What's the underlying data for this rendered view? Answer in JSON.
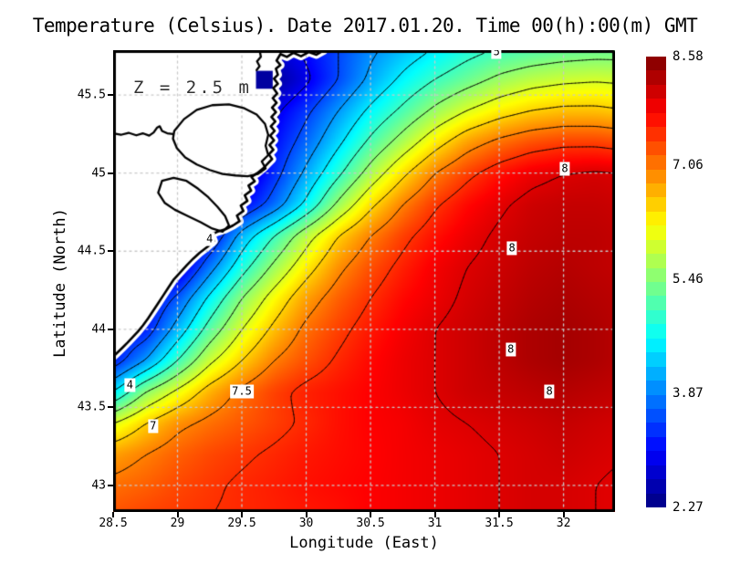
{
  "title": "Temperature (Celsius). Date 2017.01.20. Time 00(h):00(m) GMT",
  "annotation": "Z = 2.5 m",
  "axes": {
    "xlabel": "Longitude (East)",
    "ylabel": "Latitude (North)",
    "x_ticks": [
      {
        "label": "28.5",
        "lon": 28.5
      },
      {
        "label": "29",
        "lon": 29
      },
      {
        "label": "29.5",
        "lon": 29.5
      },
      {
        "label": "30",
        "lon": 30
      },
      {
        "label": "30.5",
        "lon": 30.5
      },
      {
        "label": "31",
        "lon": 31
      },
      {
        "label": "31.5",
        "lon": 31.5
      },
      {
        "label": "32",
        "lon": 32
      }
    ],
    "y_ticks": [
      {
        "label": "45.5",
        "lat": 45.5
      },
      {
        "label": "45",
        "lat": 45
      },
      {
        "label": "44.5",
        "lat": 44.5
      },
      {
        "label": "44",
        "lat": 44
      },
      {
        "label": "43.5",
        "lat": 43.5
      },
      {
        "label": "43",
        "lat": 43
      }
    ]
  },
  "colorbar": {
    "min": 2.27,
    "max": 8.58,
    "steps": 32,
    "labels": [
      {
        "text": "8.58",
        "value": 8.58
      },
      {
        "text": "7.06",
        "value": 7.06
      },
      {
        "text": "5.46",
        "value": 5.46
      },
      {
        "text": "3.87",
        "value": 3.87
      },
      {
        "text": "2.27",
        "value": 2.27
      }
    ]
  },
  "colors": {
    "land": "#ffffff",
    "coast": "#000000",
    "grid": "#c9c9c9",
    "frame": "#000000",
    "contour": "#000000",
    "cold_cell": "#0000a0"
  },
  "chart_data": {
    "type": "heatmap",
    "title": "Temperature (Celsius). Date 2017.01.20. Time 00(h):00(m) GMT",
    "xlabel": "Longitude (East)",
    "ylabel": "Latitude (North)",
    "units": "Celsius",
    "depth_annotation": "Z = 2.5 m",
    "extent": {
      "lon_min": 28.5,
      "lon_max": 32.4,
      "lat_min": 42.83,
      "lat_max": 45.787
    },
    "scale": {
      "min": 2.27,
      "max": 8.58,
      "colormap": "jet"
    },
    "contour_levels": [
      2.5,
      3,
      3.5,
      4,
      4.5,
      5,
      5.5,
      6,
      6.5,
      7,
      7.5,
      8,
      8.5
    ],
    "grid": {
      "lons": [
        28.5,
        28.75,
        29,
        29.25,
        29.5,
        29.75,
        30,
        30.25,
        30.5,
        30.75,
        31,
        31.25,
        31.5,
        31.75,
        32,
        32.25,
        32.5
      ],
      "lats": [
        45.8,
        45.6,
        45.4,
        45.2,
        45,
        44.8,
        44.6,
        44.4,
        44.2,
        44,
        43.8,
        43.6,
        43.4,
        43.2,
        43,
        42.8
      ],
      "values": [
        [
          2.3,
          2.3,
          2.3,
          2.3,
          2.4,
          2.8,
          3.1,
          3.5,
          3.9,
          4.2,
          4.5,
          4.8,
          5.0,
          5.1,
          5.2,
          5.25,
          5.25
        ],
        [
          2.3,
          2.3,
          2.3,
          2.3,
          2.3,
          2.4,
          2.9,
          3.5,
          4.1,
          4.6,
          5.0,
          5.3,
          5.6,
          5.8,
          5.9,
          5.95,
          5.9
        ],
        [
          2.3,
          2.3,
          2.3,
          2.3,
          2.4,
          2.9,
          3.4,
          4.0,
          4.6,
          5.1,
          5.6,
          6.0,
          6.3,
          6.5,
          6.6,
          6.6,
          6.5
        ],
        [
          2.3,
          2.3,
          2.3,
          2.3,
          2.5,
          3.1,
          3.7,
          4.4,
          5.1,
          5.7,
          6.3,
          6.8,
          7.1,
          7.3,
          7.4,
          7.4,
          7.3
        ],
        [
          2.3,
          2.3,
          2.3,
          2.3,
          2.6,
          3.3,
          4.1,
          4.9,
          5.7,
          6.4,
          7.0,
          7.4,
          7.7,
          7.9,
          8.0,
          8.05,
          8.0
        ],
        [
          2.3,
          2.3,
          2.3,
          2.4,
          3.0,
          3.7,
          4.6,
          5.6,
          6.4,
          7.0,
          7.45,
          7.75,
          7.95,
          8.1,
          8.15,
          8.15,
          8.1
        ],
        [
          2.4,
          2.4,
          2.5,
          3.0,
          4.2,
          5.0,
          5.8,
          6.5,
          7.0,
          7.4,
          7.7,
          7.9,
          8.05,
          8.15,
          8.2,
          8.2,
          8.15
        ],
        [
          2.6,
          2.6,
          2.7,
          3.8,
          4.8,
          5.6,
          6.3,
          6.9,
          7.3,
          7.6,
          7.85,
          8.0,
          8.1,
          8.2,
          8.25,
          8.2,
          8.15
        ],
        [
          2.8,
          2.9,
          3.6,
          4.6,
          5.5,
          6.2,
          6.8,
          7.2,
          7.5,
          7.75,
          7.9,
          8.05,
          8.15,
          8.25,
          8.3,
          8.25,
          8.2
        ],
        [
          3.0,
          3.2,
          4.2,
          5.2,
          6.0,
          6.6,
          7.1,
          7.4,
          7.65,
          7.85,
          8.0,
          8.1,
          8.2,
          8.3,
          8.35,
          8.3,
          8.2
        ],
        [
          3.2,
          4.0,
          5.0,
          5.9,
          6.5,
          7.0,
          7.3,
          7.55,
          7.75,
          7.9,
          8.0,
          8.1,
          8.2,
          8.3,
          8.35,
          8.3,
          8.2
        ],
        [
          4.5,
          5.5,
          6.1,
          6.7,
          7.1,
          7.4,
          7.6,
          7.7,
          7.8,
          7.9,
          8.0,
          8.1,
          8.15,
          8.2,
          8.25,
          8.2,
          8.15
        ],
        [
          6.0,
          6.5,
          6.9,
          7.1,
          7.25,
          7.4,
          7.55,
          7.7,
          7.8,
          7.85,
          7.95,
          8.0,
          8.05,
          8.1,
          8.15,
          8.1,
          8.05
        ],
        [
          6.8,
          7.0,
          7.2,
          7.35,
          7.45,
          7.55,
          7.65,
          7.72,
          7.78,
          7.85,
          7.9,
          7.95,
          8.0,
          8.05,
          8.1,
          8.05,
          8.0
        ],
        [
          7.1,
          7.2,
          7.35,
          7.45,
          7.55,
          7.62,
          7.7,
          7.75,
          7.8,
          7.85,
          7.9,
          7.95,
          8.0,
          8.05,
          8.05,
          8.0,
          7.95
        ],
        [
          7.3,
          7.4,
          7.45,
          7.5,
          7.55,
          7.6,
          7.65,
          7.7,
          7.8,
          7.85,
          7.9,
          7.95,
          8.0,
          8.05,
          8.05,
          8.0,
          7.95
        ]
      ]
    },
    "contour_labels": [
      {
        "text": "5",
        "lon": 31.48,
        "lat": 45.775
      },
      {
        "text": "4",
        "lon": 29.25,
        "lat": 44.58
      },
      {
        "text": "4",
        "lon": 28.63,
        "lat": 43.64
      },
      {
        "text": "7",
        "lon": 28.81,
        "lat": 43.38
      },
      {
        "text": "7.5",
        "lon": 29.5,
        "lat": 43.6
      },
      {
        "text": "8",
        "lon": 32.01,
        "lat": 45.03
      },
      {
        "text": "8",
        "lon": 31.6,
        "lat": 44.52
      },
      {
        "text": "8",
        "lon": 31.59,
        "lat": 43.87
      },
      {
        "text": "8",
        "lon": 31.89,
        "lat": 43.6
      }
    ],
    "cold_cell": {
      "lon_min": 29.61,
      "lon_max": 29.74,
      "lat_min": 45.54,
      "lat_max": 45.655
    },
    "coastline": [
      [
        30.14,
        45.787
      ],
      [
        30.08,
        45.758
      ],
      [
        30.02,
        45.775
      ],
      [
        29.96,
        45.748
      ],
      [
        29.9,
        45.77
      ],
      [
        29.85,
        45.744
      ],
      [
        29.8,
        45.762
      ],
      [
        29.77,
        45.72
      ],
      [
        29.8,
        45.692
      ],
      [
        29.765,
        45.668
      ],
      [
        29.78,
        45.63
      ],
      [
        29.75,
        45.605
      ],
      [
        29.78,
        45.572
      ],
      [
        29.745,
        45.545
      ],
      [
        29.775,
        45.51
      ],
      [
        29.74,
        45.48
      ],
      [
        29.77,
        45.45
      ],
      [
        29.735,
        45.42
      ],
      [
        29.765,
        45.39
      ],
      [
        29.73,
        45.36
      ],
      [
        29.76,
        45.33
      ],
      [
        29.725,
        45.3
      ],
      [
        29.755,
        45.27
      ],
      [
        29.72,
        45.24
      ],
      [
        29.75,
        45.21
      ],
      [
        29.715,
        45.18
      ],
      [
        29.745,
        45.15
      ],
      [
        29.71,
        45.12
      ],
      [
        29.735,
        45.09
      ],
      [
        29.7,
        45.06
      ],
      [
        29.665,
        45.03
      ],
      [
        29.62,
        45.0
      ],
      [
        29.575,
        44.975
      ],
      [
        29.6,
        44.948
      ],
      [
        29.552,
        44.92
      ],
      [
        29.572,
        44.888
      ],
      [
        29.523,
        44.858
      ],
      [
        29.543,
        44.822
      ],
      [
        29.492,
        44.792
      ],
      [
        29.512,
        44.758
      ],
      [
        29.462,
        44.728
      ],
      [
        29.482,
        44.692
      ],
      [
        29.432,
        44.665
      ],
      [
        29.372,
        44.64
      ],
      [
        29.312,
        44.625
      ],
      [
        29.262,
        44.607
      ],
      [
        29.282,
        44.565
      ],
      [
        29.232,
        44.528
      ],
      [
        29.172,
        44.49
      ],
      [
        29.122,
        44.452
      ],
      [
        29.072,
        44.41
      ],
      [
        29.022,
        44.365
      ],
      [
        28.972,
        44.32
      ],
      [
        28.932,
        44.27
      ],
      [
        28.892,
        44.22
      ],
      [
        28.852,
        44.17
      ],
      [
        28.812,
        44.12
      ],
      [
        28.772,
        44.07
      ],
      [
        28.732,
        44.025
      ],
      [
        28.692,
        43.985
      ],
      [
        28.652,
        43.95
      ],
      [
        28.612,
        43.915
      ],
      [
        28.572,
        43.882
      ],
      [
        28.532,
        43.85
      ],
      [
        28.5,
        43.825
      ],
      [
        28.5,
        45.787
      ]
    ],
    "lagoon_big": [
      [
        28.975,
        45.27
      ],
      [
        29.05,
        45.345
      ],
      [
        29.15,
        45.405
      ],
      [
        29.27,
        45.435
      ],
      [
        29.4,
        45.44
      ],
      [
        29.52,
        45.415
      ],
      [
        29.615,
        45.375
      ],
      [
        29.68,
        45.315
      ],
      [
        29.705,
        45.245
      ],
      [
        29.685,
        45.175
      ],
      [
        29.705,
        45.115
      ],
      [
        29.655,
        45.075
      ],
      [
        29.685,
        45.03
      ],
      [
        29.625,
        44.995
      ],
      [
        29.545,
        44.98
      ],
      [
        29.45,
        44.985
      ],
      [
        29.35,
        44.995
      ],
      [
        29.25,
        45.02
      ],
      [
        29.15,
        45.055
      ],
      [
        29.06,
        45.1
      ],
      [
        28.995,
        45.16
      ],
      [
        28.965,
        45.22
      ],
      [
        28.975,
        45.27
      ]
    ],
    "lagoon_south": [
      [
        28.88,
        44.95
      ],
      [
        28.97,
        44.97
      ],
      [
        29.07,
        44.95
      ],
      [
        29.16,
        44.9
      ],
      [
        29.24,
        44.845
      ],
      [
        29.31,
        44.785
      ],
      [
        29.37,
        44.725
      ],
      [
        29.4,
        44.665
      ],
      [
        29.35,
        44.625
      ],
      [
        29.27,
        44.645
      ],
      [
        29.18,
        44.685
      ],
      [
        29.08,
        44.725
      ],
      [
        28.98,
        44.765
      ],
      [
        28.9,
        44.81
      ],
      [
        28.85,
        44.875
      ],
      [
        28.88,
        44.95
      ]
    ],
    "river_line": [
      [
        28.5,
        45.255
      ],
      [
        28.56,
        45.245
      ],
      [
        28.62,
        45.258
      ],
      [
        28.68,
        45.242
      ],
      [
        28.73,
        45.255
      ],
      [
        28.78,
        45.24
      ],
      [
        28.815,
        45.26
      ],
      [
        28.84,
        45.29
      ],
      [
        28.862,
        45.3
      ],
      [
        28.88,
        45.27
      ],
      [
        28.92,
        45.255
      ],
      [
        28.965,
        45.25
      ]
    ],
    "channel_line": [
      [
        29.638,
        45.787
      ],
      [
        29.648,
        45.745
      ],
      [
        29.618,
        45.715
      ],
      [
        29.638,
        45.685
      ],
      [
        29.615,
        45.66
      ]
    ]
  }
}
